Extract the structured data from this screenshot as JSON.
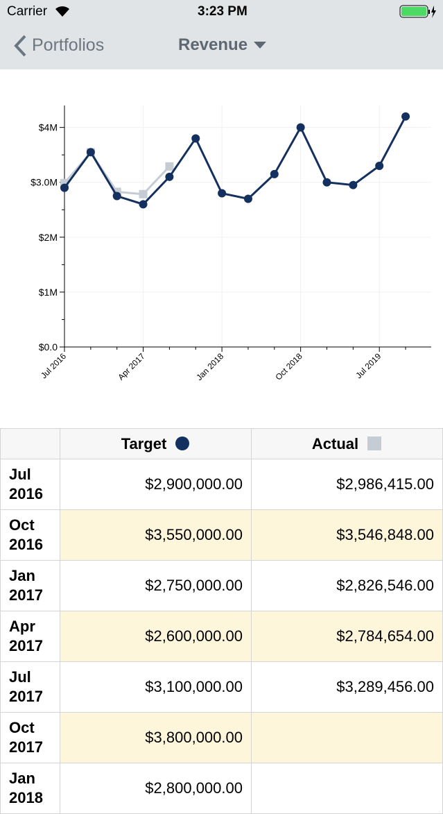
{
  "status": {
    "carrier": "Carrier",
    "time": "3:23 PM"
  },
  "nav": {
    "back": "Portfolios",
    "title": "Revenue"
  },
  "chart_data": {
    "type": "line",
    "categories": [
      "Jul 2016",
      null,
      null,
      "Apr 2017",
      null,
      null,
      "Jan 2018",
      null,
      null,
      "Oct 2018",
      null,
      null,
      "Jul 2019",
      null
    ],
    "series": [
      {
        "name": "Target",
        "color": "#14305e",
        "marker": "circle",
        "values": [
          2900000,
          3550000,
          2750000,
          2600000,
          3100000,
          3800000,
          2800000,
          2700000,
          3150000,
          4000000,
          3000000,
          2950000,
          3300000,
          4200000
        ]
      },
      {
        "name": "Actual",
        "color": "#c5ccd4",
        "marker": "square",
        "values": [
          2986415,
          3546848,
          2826546,
          2784654,
          3289456,
          null,
          null,
          null,
          null,
          null,
          null,
          null,
          null,
          null
        ]
      }
    ],
    "ylim": [
      0,
      4400000
    ],
    "yticks": [
      {
        "value": 0,
        "label": "$0.0"
      },
      {
        "value": 1000000,
        "label": "$1M"
      },
      {
        "value": 2000000,
        "label": "$2M"
      },
      {
        "value": 3000000,
        "label": "$3.0M"
      },
      {
        "value": 4000000,
        "label": "$4M"
      }
    ],
    "grid": true
  },
  "table": {
    "header": [
      "Target",
      "Actual"
    ],
    "rows": [
      [
        "Jul 2016",
        "$2,900,000.00",
        "$2,986,415.00"
      ],
      [
        "Oct 2016",
        "$3,550,000.00",
        "$3,546,848.00"
      ],
      [
        "Jan 2017",
        "$2,750,000.00",
        "$2,826,546.00"
      ],
      [
        "Apr 2017",
        "$2,600,000.00",
        "$2,784,654.00"
      ],
      [
        "Jul 2017",
        "$3,100,000.00",
        "$3,289,456.00"
      ],
      [
        "Oct 2017",
        "$3,800,000.00",
        null
      ],
      [
        "Jan 2018",
        "$2,800,000.00",
        null
      ]
    ]
  }
}
